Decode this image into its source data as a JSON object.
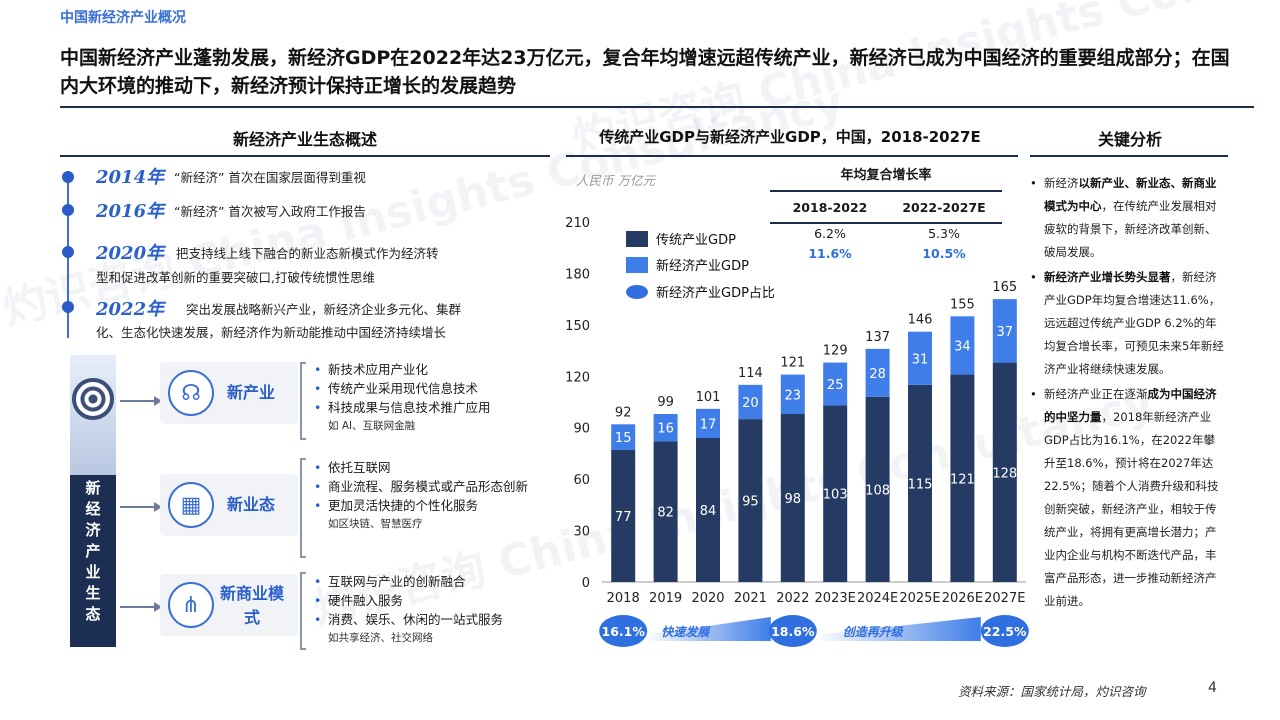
{
  "header": {
    "section_tag": "中国新经济产业概况",
    "headline": "中国新经济产业蓬勃发展，新经济GDP在2022年达23万亿元，复合年均增速远超传统产业，新经济已成为中国经济的重要组成部分；在国内大环境的推动下，新经济预计保持正增长的发展趋势"
  },
  "left_panel": {
    "title": "新经济产业生态概述",
    "timeline": [
      {
        "year": "2014年",
        "text": "“新经济” 首次在国家层面得到重视"
      },
      {
        "year": "2016年",
        "text": "“新经济” 首次被写入政府工作报告"
      },
      {
        "year": "2020年",
        "text_a": "把支持线上线下融合的新业态新模式作为经济转",
        "text_b": "型和促进改革创新的重要突破口,打破传统惯性思维"
      },
      {
        "year": "2022年",
        "text_a": "突出发展战略新兴产业，新经济企业多元化、集群",
        "text_b": "化、生态化快速发展，新经济作为新动能推动中国经济持续增长"
      }
    ],
    "ecosystem_label": "新经济产业生态",
    "ecosystem": [
      {
        "name": "新产业",
        "icon": "brain-chip-icon",
        "bullets": [
          "新技术应用产业化",
          "传统产业采用现代信息技术",
          "科技成果与信息技术推广应用"
        ],
        "example": "如 AI、互联网金融"
      },
      {
        "name": "新业态",
        "icon": "buildings-icon",
        "bullets": [
          "依托互联网",
          "商业流程、服务模式或产品形态创新",
          "更加灵活快捷的个性化服务"
        ],
        "example": "如区块链、智慧医疗"
      },
      {
        "name": "新商业模式",
        "icon": "share-network-icon",
        "bullets": [
          "互联网与产业的创新融合",
          "硬件融入服务",
          "消费、娱乐、休闲的一站式服务"
        ],
        "example": "如共享经济、社交网络"
      }
    ]
  },
  "chart_panel": {
    "title": "传统产业GDP与新经济产业GDP，中国，2018-2027E",
    "unit": "人民币 万亿元",
    "cagr_title": "年均复合增长率",
    "cagr_periods": [
      "2018-2022",
      "2022-2027E"
    ],
    "cagr_traditional": [
      "6.2%",
      "5.3%"
    ],
    "cagr_new": [
      "11.6%",
      "10.5%"
    ],
    "legend": [
      "传统产业GDP",
      "新经济产业GDP",
      "新经济产业GDP占比"
    ],
    "share_bubbles": [
      "16.1%",
      "18.6%",
      "22.5%"
    ],
    "phase_labels": [
      "快速发展",
      "创造再升级"
    ],
    "colors": {
      "traditional": "#253b63",
      "new": "#3f7ee8",
      "bubble": "#2f6fe0",
      "cagr_new": "#2f6fe0"
    }
  },
  "chart_data": {
    "type": "bar",
    "stacked": true,
    "title": "传统产业GDP与新经济产业GDP，中国，2018-2027E",
    "ylabel": "人民币 万亿元",
    "categories": [
      "2018",
      "2019",
      "2020",
      "2021",
      "2022",
      "2023E",
      "2024E",
      "2025E",
      "2026E",
      "2027E"
    ],
    "series": [
      {
        "name": "传统产业GDP",
        "values": [
          77,
          82,
          84,
          95,
          98,
          103,
          108,
          115,
          121,
          128
        ]
      },
      {
        "name": "新经济产业GDP",
        "values": [
          15,
          16,
          17,
          20,
          23,
          25,
          28,
          31,
          34,
          37
        ]
      }
    ],
    "totals": [
      92,
      99,
      101,
      114,
      121,
      129,
      137,
      146,
      155,
      165
    ],
    "ylim": [
      0,
      210
    ],
    "yticks": [
      0,
      30,
      60,
      90,
      120,
      150,
      180,
      210
    ]
  },
  "right_panel": {
    "title": "关键分析",
    "points": [
      {
        "pre": "新经济",
        "bold": "以新产业、新业态、新商业模式为中心",
        "post": "，在传统产业发展相对疲软的背景下，新经济改革创新、破局发展。"
      },
      {
        "pre": "",
        "bold": "新经济产业增长势头显著",
        "post": "，新经济产业GDP年均复合增速达11.6%，远远超过传统产业GDP 6.2%的年均复合增长率，可预见未来5年新经济产业将继续快速发展。"
      },
      {
        "pre": "新经济产业正在逐渐",
        "bold": "成为中国经济的中坚力量",
        "post": "，2018年新经济产业GDP占比为16.1%，在2022年攀升至18.6%，预计将在2027年达22.5%；随着个人消费升级和科技创新突破，新经济产业，相较于传统产业，将拥有更高增长潜力；产业内企业与机构不断迭代产品，丰富产品形态，进一步推动新经济产业前进。"
      }
    ]
  },
  "footer": {
    "source": "资料来源：国家统计局，灼识咨询",
    "page": "4"
  },
  "watermark": "灼识咨询 China Insights Consultancy"
}
